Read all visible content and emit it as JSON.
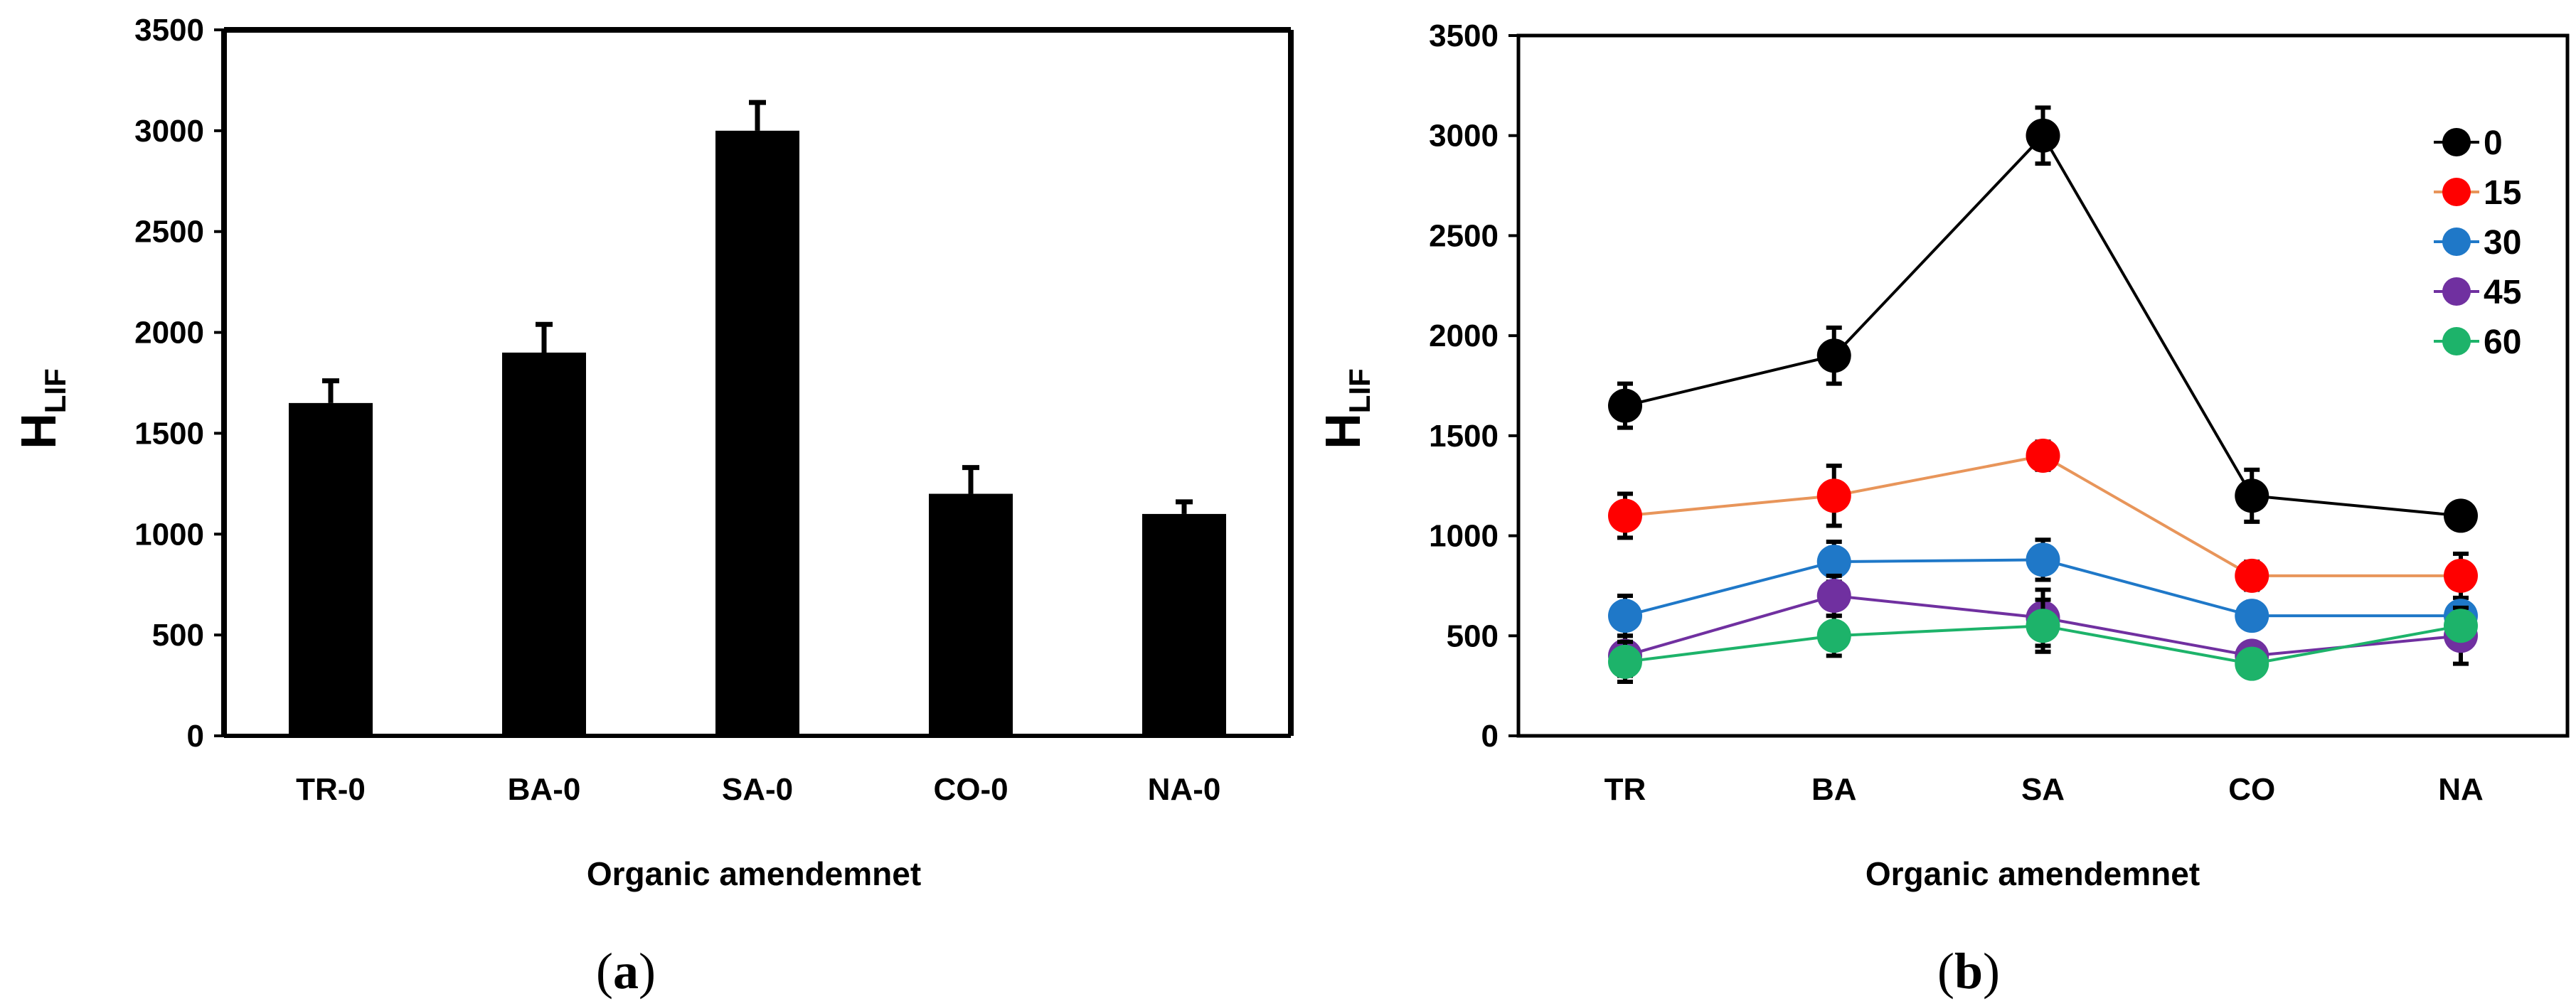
{
  "chart_data": [
    {
      "id": "a",
      "type": "bar",
      "caption_letter": "a",
      "xlabel": "Organic amendemnet",
      "ylabel_main": "H",
      "ylabel_sub": "LIF",
      "ylim": [
        0,
        3500
      ],
      "yticks": [
        0,
        500,
        1000,
        1500,
        2000,
        2500,
        3000,
        3500
      ],
      "categories": [
        "TR-0",
        "BA-0",
        "SA-0",
        "CO-0",
        "NA-0"
      ],
      "values": [
        1650,
        1900,
        3000,
        1200,
        1100
      ],
      "errors": [
        110,
        140,
        140,
        130,
        60
      ],
      "bar_color": "#000000"
    },
    {
      "id": "b",
      "type": "line",
      "caption_letter": "b",
      "xlabel": "Organic amendemnet",
      "ylabel_main": "H",
      "ylabel_sub": "LIF",
      "ylim": [
        0,
        3500
      ],
      "yticks": [
        0,
        500,
        1000,
        1500,
        2000,
        2500,
        3000,
        3500
      ],
      "categories": [
        "TR",
        "BA",
        "SA",
        "CO",
        "NA"
      ],
      "legend_position": "top-right",
      "series": [
        {
          "name": "0",
          "marker_color": "#000000",
          "line_color": "#000000",
          "values": [
            1650,
            1900,
            3000,
            1200,
            1100
          ],
          "errors": [
            110,
            140,
            140,
            130,
            50
          ]
        },
        {
          "name": "15",
          "marker_color": "#ff0000",
          "line_color": "#e8955a",
          "values": [
            1100,
            1200,
            1400,
            800,
            800
          ],
          "errors": [
            110,
            150,
            70,
            70,
            110
          ]
        },
        {
          "name": "30",
          "marker_color": "#1f78c8",
          "line_color": "#1f78c8",
          "values": [
            600,
            870,
            880,
            600,
            600
          ],
          "errors": [
            100,
            100,
            100,
            60,
            60
          ]
        },
        {
          "name": "45",
          "marker_color": "#7030a0",
          "line_color": "#7030a0",
          "values": [
            400,
            700,
            590,
            400,
            500
          ],
          "errors": [
            100,
            100,
            140,
            60,
            140
          ]
        },
        {
          "name": "60",
          "marker_color": "#1db36a",
          "line_color": "#1db36a",
          "values": [
            370,
            500,
            550,
            360,
            550
          ],
          "errors": [
            100,
            100,
            130,
            60,
            60
          ]
        }
      ]
    }
  ]
}
